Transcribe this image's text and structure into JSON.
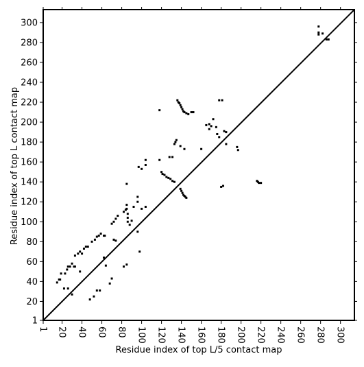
{
  "chart_data": {
    "type": "scatter",
    "xlabel": "Residue index of top L/5 contact map",
    "ylabel": "Residue index of top L contact map",
    "xlim": [
      1,
      314
    ],
    "ylim": [
      1,
      313
    ],
    "xticks": [
      1,
      20,
      40,
      60,
      80,
      100,
      120,
      140,
      160,
      180,
      200,
      220,
      240,
      260,
      280,
      300
    ],
    "yticks": [
      1,
      20,
      40,
      60,
      80,
      100,
      120,
      140,
      160,
      180,
      200,
      220,
      240,
      260,
      280,
      300
    ],
    "diagonal": {
      "color": "#000000",
      "x": [
        1,
        314
      ],
      "y": [
        1,
        313
      ]
    },
    "series": [
      {
        "color": "#000000",
        "x": [
          17,
          19,
          23,
          25,
          26,
          28,
          30,
          32,
          33,
          36,
          38,
          40,
          42,
          44,
          46,
          50,
          53,
          55,
          57,
          59,
          62,
          63,
          70,
          72,
          74,
          76,
          82,
          84,
          85,
          85,
          86,
          86,
          86,
          88,
          90,
          92,
          85,
          96,
          96,
          97,
          100,
          104,
          104,
          118,
          118,
          120,
          121,
          123,
          125,
          127,
          129,
          131,
          133,
          128,
          131,
          133,
          134,
          135,
          136,
          137,
          138,
          139,
          140,
          141,
          142,
          143,
          145,
          147,
          150,
          152,
          139,
          143,
          160,
          165,
          168,
          170,
          172,
          175,
          178,
          181,
          15,
          18,
          22,
          26,
          30,
          33,
          38,
          48,
          52,
          55,
          58,
          62,
          64,
          68,
          70,
          72,
          74,
          82,
          85,
          96,
          98,
          100,
          104,
          139,
          140,
          141,
          142,
          143,
          144,
          145,
          180,
          182,
          185,
          196,
          197,
          216,
          217,
          218,
          220,
          183,
          185,
          176,
          178,
          168,
          278,
          278,
          278,
          282,
          286,
          288
        ],
        "y": [
          42,
          48,
          48,
          52,
          55,
          55,
          58,
          55,
          66,
          68,
          70,
          68,
          73,
          75,
          75,
          80,
          82,
          85,
          86,
          88,
          86,
          86,
          98,
          100,
          103,
          106,
          110,
          112,
          113,
          117,
          108,
          104,
          100,
          97,
          101,
          115,
          138,
          125,
          120,
          155,
          153,
          157,
          162,
          212,
          162,
          150,
          148,
          147,
          145,
          144,
          143,
          141,
          140,
          165,
          165,
          178,
          180,
          182,
          222,
          220,
          219,
          217,
          215,
          213,
          211,
          210,
          209,
          208,
          210,
          210,
          176,
          173,
          173,
          197,
          198,
          196,
          203,
          195,
          222,
          222,
          39,
          42,
          33,
          33,
          27,
          55,
          50,
          22,
          25,
          31,
          31,
          64,
          56,
          38,
          43,
          82,
          81,
          55,
          57,
          90,
          70,
          113,
          115,
          133,
          131,
          129,
          127,
          126,
          125,
          124,
          135,
          136,
          178,
          175,
          172,
          141,
          140,
          139,
          139,
          191,
          190,
          188,
          185,
          193,
          296,
          290,
          288,
          289,
          283,
          283
        ]
      }
    ]
  }
}
